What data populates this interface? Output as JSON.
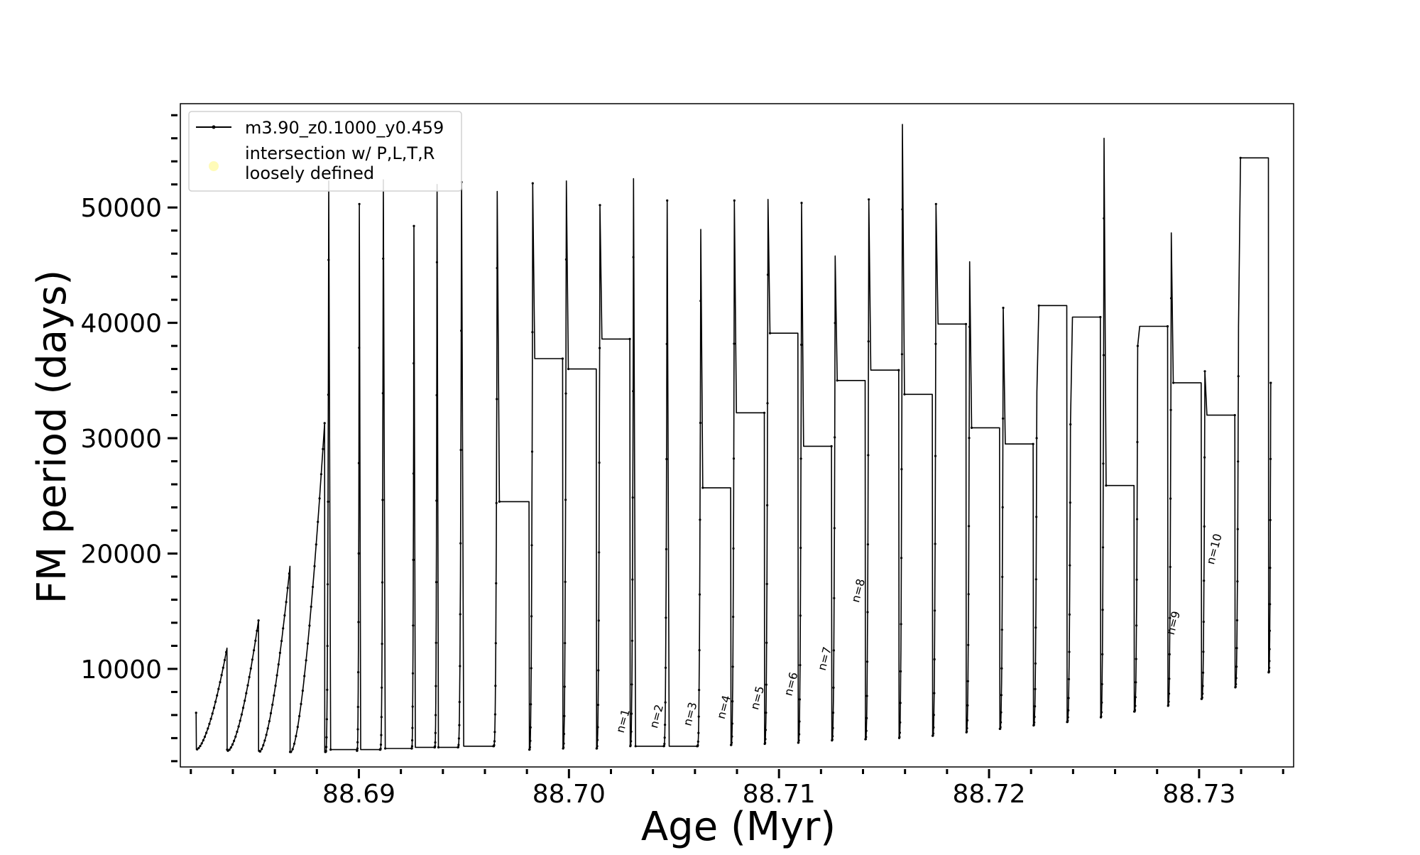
{
  "chart_data": {
    "type": "line",
    "xlabel": "Age (Myr)",
    "ylabel": "FM period (days)",
    "xlim": [
      88.6815,
      88.7345
    ],
    "ylim": [
      1500,
      59000
    ],
    "x_ticks": [
      "88.69",
      "88.70",
      "88.71",
      "88.72",
      "88.73"
    ],
    "x_tick_values": [
      88.69,
      88.7,
      88.71,
      88.72,
      88.73
    ],
    "y_ticks": [
      "10000",
      "20000",
      "30000",
      "40000",
      "50000"
    ],
    "y_tick_values": [
      10000,
      20000,
      30000,
      40000,
      50000
    ],
    "grid": false,
    "legend_position": "upper-left",
    "legend": [
      {
        "label": "m3.90_z0.1000_y0.459",
        "marker": "line-with-dots",
        "color": "#000000"
      },
      {
        "label_lines": [
          "intersection w/ P,L,T,R",
          "loosely defined"
        ],
        "marker": "circle",
        "color": "#fffbb0"
      }
    ],
    "series": [
      {
        "name": "m3.90_z0.1000_y0.459",
        "color": "#000000",
        "pulses": [
          {
            "x": 88.68225,
            "start": 6200,
            "min": 3000,
            "peak": 11800
          },
          {
            "x": 88.68375,
            "start": 3000,
            "min": 2900,
            "peak": 14200
          },
          {
            "x": 88.68525,
            "start": 2900,
            "min": 2800,
            "peak": 18900
          },
          {
            "x": 88.68675,
            "start": 2800,
            "min": 2800,
            "peak": 31300
          },
          {
            "x": 88.6884,
            "start": 2800,
            "min": 2800,
            "peak": 52300
          },
          {
            "x": 88.6899,
            "start": 3000,
            "min": 2900,
            "peak": 50300
          },
          {
            "x": 88.691,
            "start": 3000,
            "min": 3000,
            "peak": 52400
          },
          {
            "x": 88.6925,
            "start": 3100,
            "min": 3100,
            "peak": 48400
          },
          {
            "x": 88.6936,
            "start": 3200,
            "min": 3200,
            "peak": 52000
          },
          {
            "x": 88.6947,
            "start": 3200,
            "min": 3200,
            "peak": 52200
          },
          {
            "x": 88.6964,
            "start": 3300,
            "min": 3300,
            "peak": 51400
          },
          {
            "x": 88.6981,
            "start": 24500,
            "min": 3000,
            "peak": 52100
          },
          {
            "x": 88.6997,
            "start": 36900,
            "min": 3100,
            "peak": 52300
          },
          {
            "x": 88.7013,
            "start": 36000,
            "min": 3100,
            "peak": 50200
          },
          {
            "x": 88.7029,
            "start": 38600,
            "min": 3300,
            "peak": 52500
          },
          {
            "x": 88.7045,
            "start": 3300,
            "min": 3300,
            "peak": 50600
          },
          {
            "x": 88.7061,
            "start": 3300,
            "min": 3300,
            "peak": 48100
          },
          {
            "x": 88.7077,
            "start": 25700,
            "min": 3400,
            "peak": 50600
          },
          {
            "x": 88.7093,
            "start": 32200,
            "min": 3500,
            "peak": 50700
          },
          {
            "x": 88.7109,
            "start": 39100,
            "min": 3600,
            "peak": 50400
          },
          {
            "x": 88.7125,
            "start": 29300,
            "min": 3800,
            "peak": 45800
          },
          {
            "x": 88.7141,
            "start": 35000,
            "min": 3900,
            "peak": 50700
          },
          {
            "x": 88.7157,
            "start": 35900,
            "min": 4000,
            "peak": 57200
          },
          {
            "x": 88.7173,
            "start": 33800,
            "min": 4200,
            "peak": 50300
          },
          {
            "x": 88.7189,
            "start": 39900,
            "min": 4500,
            "peak": 45300
          },
          {
            "x": 88.7205,
            "start": 30900,
            "min": 4800,
            "peak": 41300
          },
          {
            "x": 88.7221,
            "start": 29500,
            "min": 5100,
            "peak": 34000
          },
          {
            "x": 88.7237,
            "start": 41500,
            "min": 5400,
            "peak": 31200
          },
          {
            "x": 88.7253,
            "start": 40500,
            "min": 5800,
            "peak": 56000
          },
          {
            "x": 88.7269,
            "start": 25900,
            "min": 6300,
            "peak": 38000
          },
          {
            "x": 88.7285,
            "start": 39700,
            "min": 6800,
            "peak": 47800
          },
          {
            "x": 88.7301,
            "start": 34800,
            "min": 7400,
            "peak": 35800
          },
          {
            "x": 88.7317,
            "start": 32000,
            "min": 8400,
            "peak": 39700
          },
          {
            "x": 88.7333,
            "start": 54300,
            "min": 9700,
            "peak": 34800
          }
        ]
      }
    ],
    "annotations": [
      {
        "text": "n=1",
        "x": 88.7026,
        "y": 4400
      },
      {
        "text": "n=2",
        "x": 88.7042,
        "y": 4800
      },
      {
        "text": "n=3",
        "x": 88.7058,
        "y": 5000
      },
      {
        "text": "n=4",
        "x": 88.7074,
        "y": 5600
      },
      {
        "text": "n=5",
        "x": 88.709,
        "y": 6400
      },
      {
        "text": "n=6",
        "x": 88.7106,
        "y": 7600
      },
      {
        "text": "n=7",
        "x": 88.7122,
        "y": 9800
      },
      {
        "text": "n=8",
        "x": 88.7138,
        "y": 15700
      },
      {
        "text": "n=9",
        "x": 88.7288,
        "y": 12900
      },
      {
        "text": "n=10",
        "x": 88.7307,
        "y": 19000
      }
    ]
  }
}
